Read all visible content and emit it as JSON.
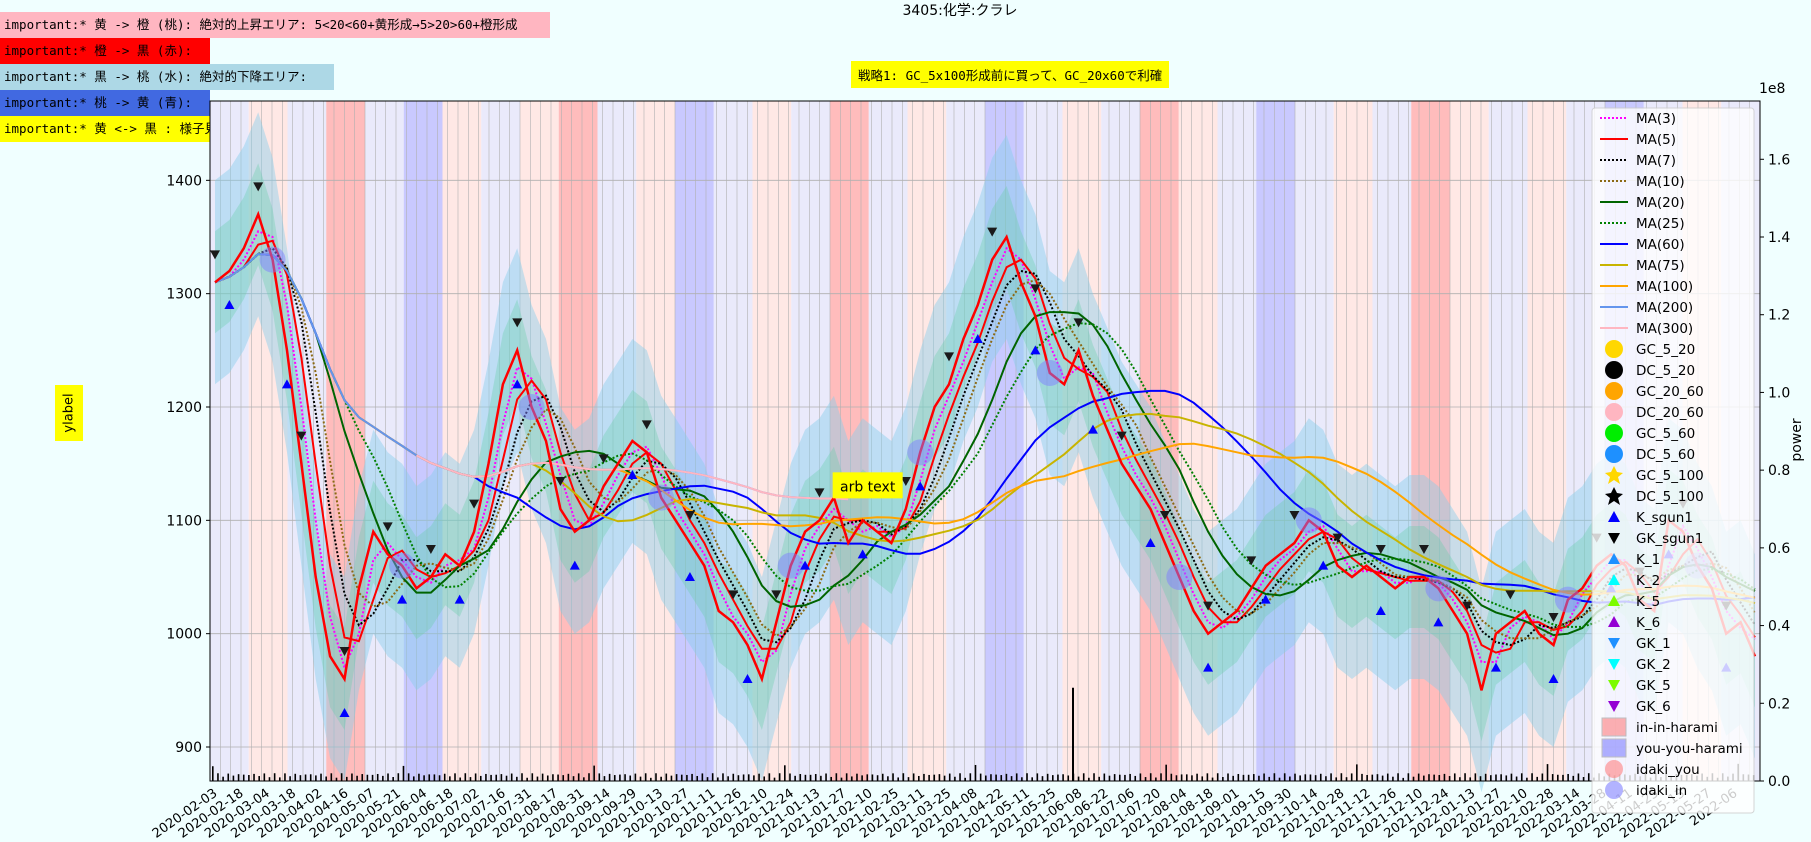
{
  "title": "3405:化学:クラレ",
  "strategy_note": "戦略1: GC_5x100形成前に買って、GC_20x60で利確",
  "notes": [
    {
      "text": "important:* 黄 -> 橙 (桃): 絶対的上昇エリア: 5<20<60+黄形成→5>20>60+橙形成",
      "color": "#ffb6c1"
    },
    {
      "text": "important:* 橙 -> 黒 (赤):",
      "color": "#ff0000"
    },
    {
      "text": "important:* 黒 -> 桃 (水): 絶対的下降エリア:",
      "color": "#add8e6"
    },
    {
      "text": "important:* 桃 -> 黄 (青):",
      "color": "#4169e1"
    },
    {
      "text": "important:* 黄 <-> 黒 : 様子見:",
      "color": "#ffff00"
    }
  ],
  "annotation": "arb text",
  "chart_data": {
    "type": "line",
    "title": "3405:化学:クラレ",
    "xlabel": "",
    "ylabel": "ylabel",
    "y2label": "power",
    "y2_exponent": "1e8",
    "ylim": [
      870,
      1470
    ],
    "y2lim": [
      0,
      1.75
    ],
    "yticks": [
      900,
      1000,
      1100,
      1200,
      1300,
      1400
    ],
    "y2ticks": [
      0.0,
      0.2,
      0.4,
      0.6,
      0.8,
      1.0,
      1.2,
      1.4,
      1.6
    ],
    "x_start": "2020-02-03",
    "x_tick_first": "2020-02-03",
    "x_tick_last": "2022-06",
    "price_series": {
      "name": "close",
      "values": [
        1310,
        1320,
        1340,
        1370,
        1330,
        1250,
        1150,
        1050,
        980,
        960,
        1040,
        1090,
        1070,
        1060,
        1040,
        1050,
        1070,
        1060,
        1090,
        1150,
        1220,
        1250,
        1200,
        1170,
        1110,
        1090,
        1100,
        1130,
        1150,
        1170,
        1160,
        1120,
        1100,
        1080,
        1060,
        1020,
        1010,
        990,
        960,
        1010,
        1060,
        1090,
        1100,
        1120,
        1080,
        1100,
        1090,
        1080,
        1110,
        1160,
        1200,
        1220,
        1260,
        1290,
        1330,
        1350,
        1310,
        1280,
        1230,
        1220,
        1250,
        1210,
        1180,
        1150,
        1130,
        1110,
        1080,
        1050,
        1020,
        1000,
        1010,
        1020,
        1040,
        1060,
        1070,
        1080,
        1100,
        1090,
        1060,
        1050,
        1060,
        1050,
        1040,
        1050,
        1050,
        1040,
        1020,
        1000,
        950,
        1000,
        1010,
        1020,
        1000,
        990,
        1030,
        1040,
        1060,
        1070,
        1060,
        1030,
        1020,
        1100,
        1090,
        1060,
        1040,
        1000,
        1010,
        980
      ]
    },
    "ma_series": [
      {
        "name": "MA(3)",
        "color": "#ff00ff",
        "style": "dotted"
      },
      {
        "name": "MA(5)",
        "color": "#ff0000",
        "style": "solid"
      },
      {
        "name": "MA(7)",
        "color": "#000000",
        "style": "dotted"
      },
      {
        "name": "MA(10)",
        "color": "#8b6914",
        "style": "dotted"
      },
      {
        "name": "MA(20)",
        "color": "#006400",
        "style": "solid"
      },
      {
        "name": "MA(25)",
        "color": "#008000",
        "style": "dotted"
      },
      {
        "name": "MA(60)",
        "color": "#0000ff",
        "style": "solid"
      },
      {
        "name": "MA(75)",
        "color": "#c8b400",
        "style": "solid"
      },
      {
        "name": "MA(100)",
        "color": "#ffa500",
        "style": "solid"
      },
      {
        "name": "MA(200)",
        "color": "#6495ed",
        "style": "solid"
      },
      {
        "name": "MA(300)",
        "color": "#ffb6c1",
        "style": "solid"
      }
    ],
    "marker_series": [
      {
        "name": "GC_5_20",
        "color": "#ffd700",
        "shape": "circle"
      },
      {
        "name": "DC_5_20",
        "color": "#000000",
        "shape": "circle"
      },
      {
        "name": "GC_20_60",
        "color": "#ffa500",
        "shape": "circle"
      },
      {
        "name": "DC_20_60",
        "color": "#ffb6c1",
        "shape": "circle"
      },
      {
        "name": "GC_5_60",
        "color": "#00ee00",
        "shape": "circle"
      },
      {
        "name": "DC_5_60",
        "color": "#1e90ff",
        "shape": "circle"
      },
      {
        "name": "GC_5_100",
        "color": "#ffd700",
        "shape": "star"
      },
      {
        "name": "DC_5_100",
        "color": "#000000",
        "shape": "star"
      },
      {
        "name": "K_sgun1",
        "color": "#0000ff",
        "shape": "triangle-up"
      },
      {
        "name": "GK_sgun1",
        "color": "#000000",
        "shape": "triangle-down"
      },
      {
        "name": "K_1",
        "color": "#1e90ff",
        "shape": "triangle-up"
      },
      {
        "name": "K_2",
        "color": "#00ffff",
        "shape": "triangle-up"
      },
      {
        "name": "K_5",
        "color": "#7cfc00",
        "shape": "triangle-up"
      },
      {
        "name": "K_6",
        "color": "#9400d3",
        "shape": "triangle-up"
      },
      {
        "name": "GK_1",
        "color": "#1e90ff",
        "shape": "triangle-down"
      },
      {
        "name": "GK_2",
        "color": "#00ffff",
        "shape": "triangle-down"
      },
      {
        "name": "GK_5",
        "color": "#7cfc00",
        "shape": "triangle-down"
      },
      {
        "name": "GK_6",
        "color": "#9400d3",
        "shape": "triangle-down"
      }
    ],
    "patch_series": [
      {
        "name": "in-in-harami",
        "color": "#ff8080",
        "shape": "rect"
      },
      {
        "name": "you-you-harami",
        "color": "#8080ff",
        "shape": "rect"
      },
      {
        "name": "idaki_you",
        "color": "#ff8080",
        "shape": "circle"
      },
      {
        "name": "idaki_in",
        "color": "#8080ff",
        "shape": "circle"
      }
    ],
    "grid": true,
    "legend_position": "top-right",
    "bands": [
      "#e6e6fa",
      "#ffe4e1",
      "#e6e6fa",
      "#ffb0b0",
      "#e6e6fa",
      "#c0c0ff",
      "#ffe4e1",
      "#e6e6fa",
      "#ffe4e1",
      "#ffb0b0",
      "#e6e6fa",
      "#ffe4e1",
      "#c0c0ff",
      "#e6e6fa",
      "#ffe4e1",
      "#e6e6fa",
      "#ffb0b0",
      "#e6e6fa",
      "#ffe4e1",
      "#e6e6fa",
      "#c0c0ff",
      "#e6e6fa",
      "#ffe4e1",
      "#e6e6fa",
      "#ffb0b0",
      "#ffe4e1",
      "#e6e6fa",
      "#c0c0ff",
      "#e6e6fa",
      "#ffe4e1",
      "#e6e6fa",
      "#ffb0b0",
      "#ffe4e1",
      "#e6e6fa",
      "#ffe4e1",
      "#e6e6fa",
      "#c0c0ff",
      "#e6e6fa",
      "#ffe4e1",
      "#e6e6fa"
    ]
  }
}
